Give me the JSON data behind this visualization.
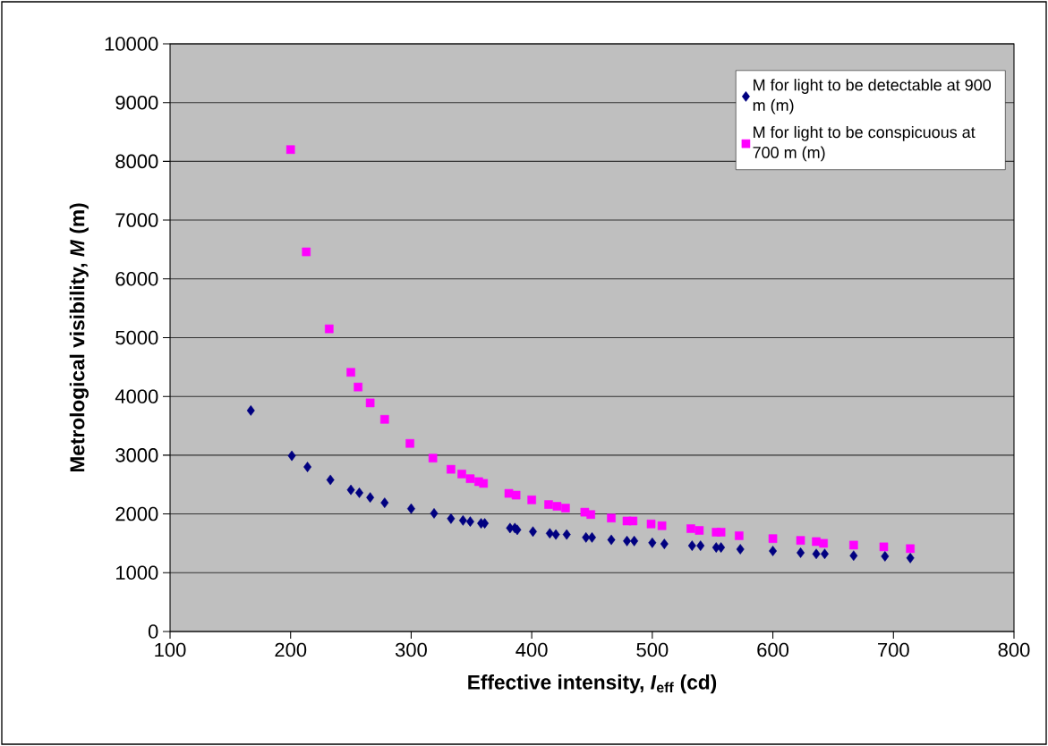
{
  "chart_data": {
    "type": "scatter",
    "xlabel": "Effective intensity, *I*$_{eff}$ (cd)",
    "ylabel": "Metrological visibility, *M*  (m)",
    "xlim": [
      100,
      800
    ],
    "xticks": [
      100,
      200,
      300,
      400,
      500,
      600,
      700,
      800
    ],
    "ylim": [
      0,
      10000
    ],
    "yticks": [
      0,
      1000,
      2000,
      3000,
      4000,
      5000,
      6000,
      7000,
      8000,
      9000,
      10000
    ],
    "grid": "y",
    "legend": "top right",
    "series": [
      {
        "name": "M for light to be detectable at 900 m (m)",
        "color": "#000080",
        "marker": "diamond",
        "x": [
          167,
          201,
          214,
          233,
          250,
          257,
          266,
          278,
          300,
          319,
          333,
          343,
          349,
          358,
          361,
          382,
          386,
          388,
          401,
          415,
          420,
          429,
          445,
          450,
          466,
          479,
          485,
          500,
          510,
          533,
          540,
          553,
          557,
          573,
          600,
          623,
          636,
          643,
          667,
          693,
          714
        ],
        "values": [
          3760,
          2990,
          2800,
          2580,
          2410,
          2360,
          2280,
          2190,
          2090,
          2010,
          1920,
          1890,
          1870,
          1840,
          1840,
          1760,
          1760,
          1730,
          1700,
          1670,
          1650,
          1650,
          1600,
          1600,
          1560,
          1540,
          1540,
          1510,
          1490,
          1460,
          1460,
          1430,
          1430,
          1400,
          1370,
          1340,
          1320,
          1320,
          1290,
          1280,
          1250
        ]
      },
      {
        "name": "M for light to be conspicuous at 700 m (m)",
        "color": "#ff00ff",
        "marker": "square",
        "x": [
          200,
          213,
          232,
          250,
          256,
          266,
          278,
          299,
          318,
          333,
          342,
          349,
          356,
          360,
          381,
          387,
          400,
          414,
          421,
          428,
          444,
          449,
          466,
          479,
          484,
          499,
          508,
          532,
          539,
          553,
          557,
          572,
          600,
          623,
          636,
          642,
          667,
          692,
          714
        ],
        "values": [
          8200,
          6460,
          5150,
          4410,
          4160,
          3890,
          3610,
          3200,
          2950,
          2760,
          2680,
          2600,
          2550,
          2520,
          2350,
          2320,
          2240,
          2160,
          2130,
          2100,
          2030,
          1990,
          1930,
          1880,
          1880,
          1830,
          1800,
          1750,
          1720,
          1690,
          1690,
          1630,
          1580,
          1550,
          1530,
          1500,
          1470,
          1440,
          1410
        ]
      }
    ]
  }
}
